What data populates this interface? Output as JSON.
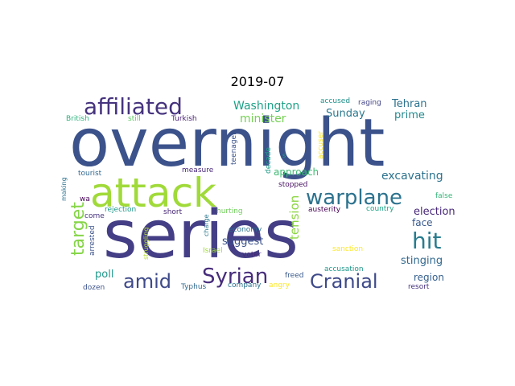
{
  "title": "2019-07",
  "words": [
    {
      "text": "overnight",
      "color": "#3b528b"
    },
    {
      "text": "series",
      "color": "#433e85"
    },
    {
      "text": "attack",
      "color": "#a0da39"
    },
    {
      "text": "affiliated",
      "color": "#46337e"
    },
    {
      "text": "warplane",
      "color": "#2c728e"
    },
    {
      "text": "hit",
      "color": "#287c8e"
    },
    {
      "text": "Syrian",
      "color": "#472d7b"
    },
    {
      "text": "Cranial",
      "color": "#3e4a89"
    },
    {
      "text": "amid",
      "color": "#3e4a89"
    },
    {
      "text": "target",
      "color": "#86d549"
    },
    {
      "text": "Washington",
      "color": "#1fa187"
    },
    {
      "text": "minister",
      "color": "#75d054"
    },
    {
      "text": "Sunday",
      "color": "#2a788e"
    },
    {
      "text": "Tehran",
      "color": "#2c728e"
    },
    {
      "text": "prime",
      "color": "#23898e"
    },
    {
      "text": "approach",
      "color": "#3fbc73"
    },
    {
      "text": "excavating",
      "color": "#2c728e"
    },
    {
      "text": "tension",
      "color": "#8ed645"
    },
    {
      "text": "election",
      "color": "#482878"
    },
    {
      "text": "face",
      "color": "#38588c"
    },
    {
      "text": "suggest",
      "color": "#3b528b"
    },
    {
      "text": "stinging",
      "color": "#31688e"
    },
    {
      "text": "region",
      "color": "#355f8d"
    },
    {
      "text": "poll",
      "color": "#1f988b"
    },
    {
      "text": "accused",
      "color": "#21918c"
    },
    {
      "text": "raging",
      "color": "#414487"
    },
    {
      "text": "British",
      "color": "#2db27d"
    },
    {
      "text": "still",
      "color": "#5ec962"
    },
    {
      "text": "Turkish",
      "color": "#482173"
    },
    {
      "text": "teenager",
      "color": "#3b528b"
    },
    {
      "text": "accuser",
      "color": "#fde725"
    },
    {
      "text": "decade",
      "color": "#1f9e89"
    },
    {
      "text": "s",
      "color": "#1fa187"
    },
    {
      "text": "stopped",
      "color": "#471063"
    },
    {
      "text": "tourist",
      "color": "#31688e"
    },
    {
      "text": "measure",
      "color": "#482878"
    },
    {
      "text": "making",
      "color": "#2c728e"
    },
    {
      "text": "wa",
      "color": "#440154"
    },
    {
      "text": "false",
      "color": "#35b779"
    },
    {
      "text": "rejection",
      "color": "#1f988b"
    },
    {
      "text": "short",
      "color": "#482878"
    },
    {
      "text": "hurting",
      "color": "#6ece58"
    },
    {
      "text": "austerity",
      "color": "#440154"
    },
    {
      "text": "country",
      "color": "#20a486"
    },
    {
      "text": "come",
      "color": "#46337e"
    },
    {
      "text": "economy",
      "color": "#2c728e"
    },
    {
      "text": "charge",
      "color": "#2a788e"
    },
    {
      "text": "arrested",
      "color": "#3b528b"
    },
    {
      "text": "struggling",
      "color": "#b5de2b"
    },
    {
      "text": "Israel",
      "color": "#a0da39"
    },
    {
      "text": "sanction",
      "color": "#fde725"
    },
    {
      "text": "voter",
      "color": "#482878"
    },
    {
      "text": "accusation",
      "color": "#1f988b"
    },
    {
      "text": "freed",
      "color": "#38588c"
    },
    {
      "text": "dozen",
      "color": "#3b528b"
    },
    {
      "text": "Typhus",
      "color": "#31688e"
    },
    {
      "text": "company",
      "color": "#2c728e"
    },
    {
      "text": "angry",
      "color": "#fde725"
    },
    {
      "text": "resort",
      "color": "#46337e"
    }
  ]
}
